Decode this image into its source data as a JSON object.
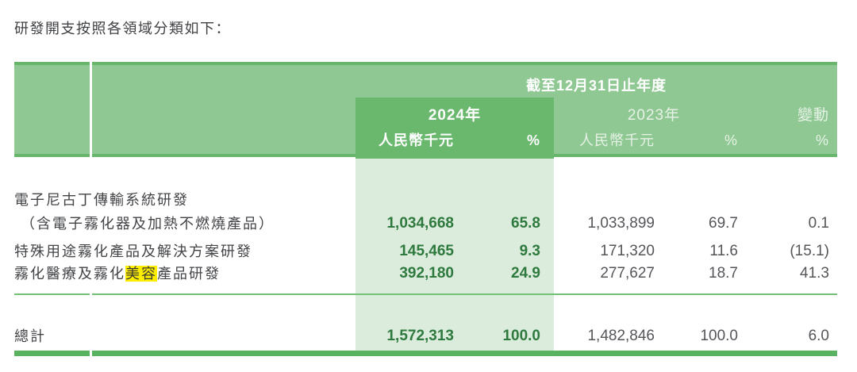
{
  "title": "研發開支按照各領域分類如下：",
  "table": {
    "period_header": "截至12月31日止年度",
    "col_groups": {
      "y2024": "2024年",
      "y2023": "2023年",
      "change": "變動"
    },
    "units": {
      "y2024_rmb": "人民幣千元",
      "y2024_pct": "%",
      "y2023_rmb": "人民幣千元",
      "y2023_pct": "%",
      "change_pct": "%"
    },
    "rows": [
      {
        "label_line1": "電子尼古丁傳輸系統研發",
        "label_line2": "（含電子霧化器及加熱不燃燒產品）",
        "v2024": "1,034,668",
        "p2024": "65.8",
        "v2023": "1,033,899",
        "p2023": "69.7",
        "change": "0.1"
      },
      {
        "label": "特殊用途霧化產品及解決方案研發",
        "v2024": "145,465",
        "p2024": "9.3",
        "v2023": "171,320",
        "p2023": "11.6",
        "change": "(15.1)"
      },
      {
        "label_prefix": "霧化醫療及霧化",
        "label_highlight": "美容",
        "label_suffix": "產品研發",
        "v2024": "392,180",
        "p2024": "24.9",
        "v2023": "277,627",
        "p2023": "18.7",
        "change": "41.3"
      }
    ],
    "total": {
      "label": "總計",
      "v2024": "1,572,313",
      "p2024": "100.0",
      "v2023": "1,482,846",
      "p2023": "100.0",
      "change": "6.0"
    }
  },
  "colors": {
    "header_green": "#8fc893",
    "header_border_green": "#68b66c",
    "block_green": "#6ab86e",
    "light_column_green": "#dcecdc",
    "bottom_bar_green": "#58b260",
    "separator_green": "#72bf76",
    "value_2024_green": "#2e7a3e",
    "text_gray": "#55565a",
    "label_gray": "#434447",
    "highlight_yellow": "#fdee00"
  }
}
